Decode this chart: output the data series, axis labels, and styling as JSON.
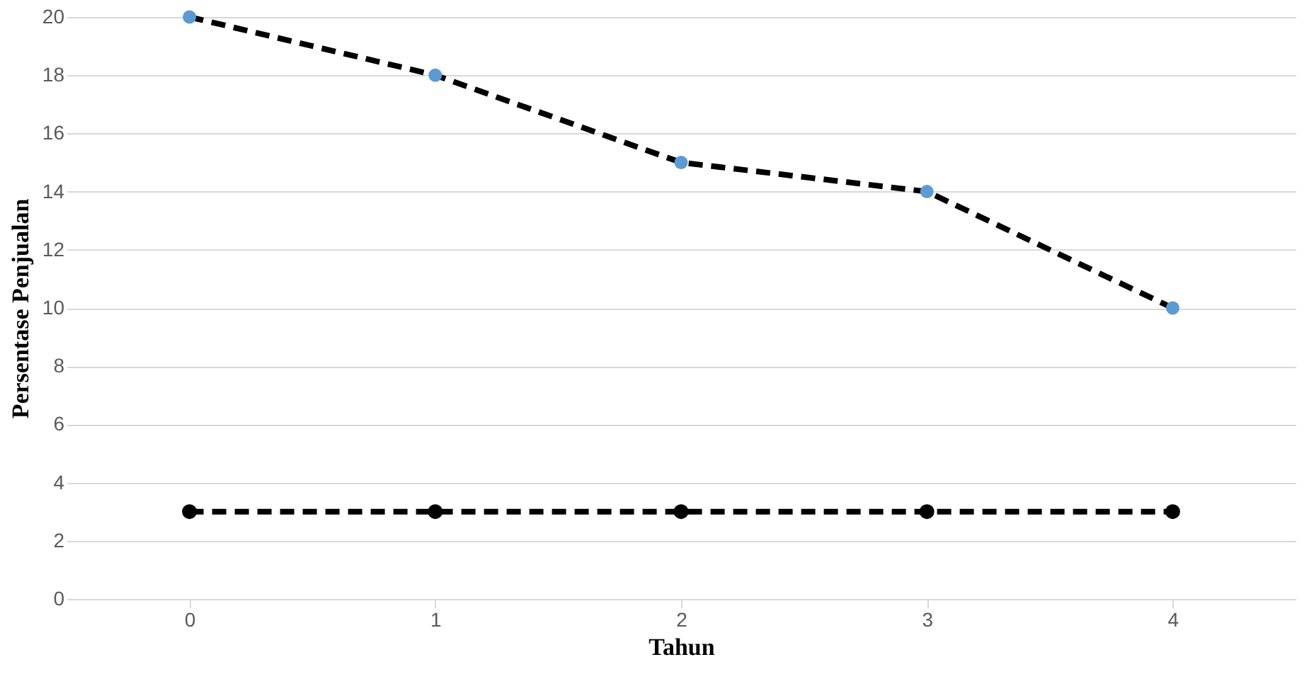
{
  "chart_data": {
    "type": "line",
    "xlabel": "Tahun",
    "ylabel": "Persentase Penjualan",
    "categories": [
      "0",
      "1",
      "2",
      "3",
      "4"
    ],
    "series": [
      {
        "color": "#000000",
        "values": [
          20,
          18,
          15,
          14,
          10
        ],
        "marker": "none",
        "line_style": "dashed"
      },
      {
        "type": "scatter",
        "color": "#5b9bd5",
        "values": [
          20,
          18,
          15,
          14,
          10
        ],
        "marker": "circle"
      },
      {
        "color": "#000000",
        "values": [
          3,
          3,
          3,
          3,
          3
        ],
        "marker": "circle",
        "line_style": "dashed"
      }
    ],
    "ylim": [
      0,
      20
    ],
    "yticks": [
      0,
      2,
      4,
      6,
      8,
      10,
      12,
      14,
      16,
      18,
      20
    ],
    "grid": "y"
  }
}
